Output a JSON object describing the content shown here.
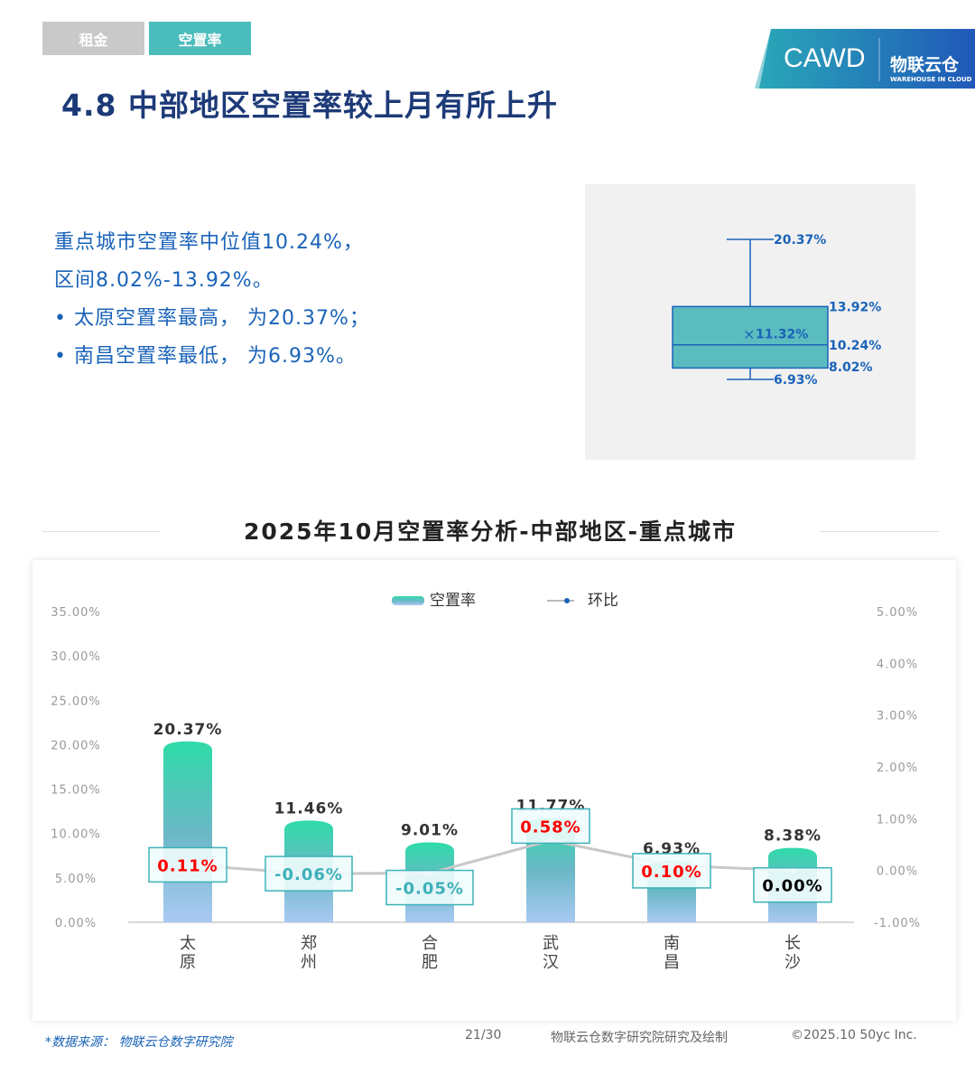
{
  "tabs": [
    {
      "label": "租金",
      "active": false
    },
    {
      "label": "空置率",
      "active": true
    }
  ],
  "logo": {
    "left": "CAWD",
    "right": "物联云仓",
    "right_sub": "WAREHOUSE IN CLOUD"
  },
  "title": "4.8 中部地区空置率较上月有所上升",
  "summary": {
    "line1": "重点城市空置率中位值10.24%，",
    "line2": "区间8.02%-13.92%。",
    "bullet1": "太原空置率最高， 为20.37%；",
    "bullet2": "南昌空置率最低， 为6.93%。"
  },
  "boxplot": {
    "max": 20.37,
    "q3": 13.92,
    "mean": 11.32,
    "median": 10.24,
    "q1": 8.02,
    "min": 6.93,
    "labels": {
      "max": "20.37%",
      "q3": "13.92%",
      "mean": "11.32%",
      "median": "10.24%",
      "q1": "8.02%",
      "min": "6.93%"
    }
  },
  "section_title": "2025年10月空置率分析-中部地区-重点城市",
  "chart_data": {
    "type": "bar+line",
    "categories": [
      "太原",
      "郑州",
      "合肥",
      "武汉",
      "南昌",
      "长沙"
    ],
    "series": [
      {
        "name": "空置率",
        "type": "bar",
        "axis": "left",
        "values": [
          20.37,
          11.46,
          9.01,
          11.77,
          6.93,
          8.38
        ],
        "labels": [
          "20.37%",
          "11.46%",
          "9.01%",
          "11.77%",
          "6.93%",
          "8.38%"
        ]
      },
      {
        "name": "环比",
        "type": "line",
        "axis": "right",
        "values": [
          0.11,
          -0.06,
          -0.05,
          0.58,
          0.1,
          0.0
        ],
        "labels": [
          "0.11%",
          "-0.06%",
          "-0.05%",
          "0.58%",
          "0.10%",
          "0.00%"
        ]
      }
    ],
    "left_axis": {
      "ylim": [
        0,
        35
      ],
      "ticks": [
        "0.00%",
        "5.00%",
        "10.00%",
        "15.00%",
        "20.00%",
        "25.00%",
        "30.00%",
        "35.00%"
      ]
    },
    "right_axis": {
      "ylim": [
        -1,
        5
      ],
      "ticks": [
        "-1.00%",
        "0.00%",
        "1.00%",
        "2.00%",
        "3.00%",
        "4.00%",
        "5.00%"
      ]
    },
    "legend_position": "top",
    "grid": false,
    "colors": {
      "bar_top": "#2edba8",
      "bar_mid": "#5ab8c0",
      "bar_bottom": "#a9c9f2",
      "line": "#c8c8c8",
      "positive": "#ff0000",
      "negative": "#3db0b8",
      "zero": "#000000"
    }
  },
  "footer": {
    "source": "*数据来源： 物联云仓数字研究院",
    "page": "21/30",
    "credit": "物联云仓数字研究院研究及绘制",
    "copyright": "©2025.10 50yc Inc."
  }
}
